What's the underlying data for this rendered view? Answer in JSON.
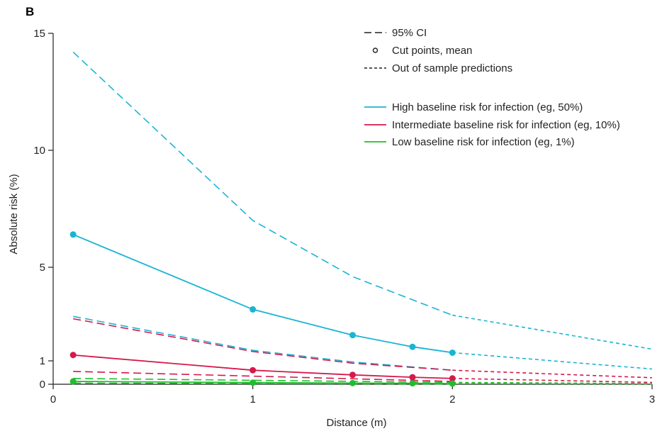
{
  "chart_data": {
    "type": "line",
    "panel_label": "B",
    "xlabel": "Distance (m)",
    "ylabel": "Absolute risk (%)",
    "xlim": [
      0,
      3
    ],
    "ylim": [
      0,
      15
    ],
    "x_ticks": [
      "0",
      "1",
      "2",
      "3"
    ],
    "y_ticks": [
      "0",
      "1",
      "5",
      "10",
      "15"
    ],
    "grid": false,
    "legend_position": "top-right",
    "style_legend": [
      {
        "label": "95% CI",
        "marker": "long-dash"
      },
      {
        "label": "Cut points, mean",
        "marker": "circle"
      },
      {
        "label": "Out of sample predictions",
        "marker": "short-dash"
      }
    ],
    "series": [
      {
        "name": "High baseline risk for infection (eg, 50%)",
        "color": "#1ab4d4",
        "mean": {
          "x": [
            0.1,
            1.0,
            1.5,
            1.8,
            2.0
          ],
          "y": [
            6.4,
            3.2,
            2.1,
            1.6,
            1.35
          ]
        },
        "ci_upper": {
          "x": [
            0.1,
            1.0,
            1.5,
            2.0
          ],
          "y": [
            14.2,
            7.0,
            4.6,
            2.95
          ]
        },
        "ci_lower": {
          "x": [
            0.1,
            1.0,
            1.5,
            2.0
          ],
          "y": [
            2.9,
            1.45,
            0.95,
            0.6
          ]
        },
        "out_of_sample_mean": {
          "x": [
            2.0,
            3.0
          ],
          "y": [
            1.35,
            0.65
          ]
        },
        "out_of_sample_upper": {
          "x": [
            2.0,
            3.0
          ],
          "y": [
            2.95,
            1.5
          ]
        }
      },
      {
        "name": "Intermediate baseline risk for infection (eg, 10%)",
        "color": "#d6184c",
        "mean": {
          "x": [
            0.1,
            1.0,
            1.5,
            1.8,
            2.0
          ],
          "y": [
            1.25,
            0.6,
            0.4,
            0.3,
            0.25
          ]
        },
        "ci_upper": {
          "x": [
            0.1,
            1.0,
            1.5,
            2.0
          ],
          "y": [
            2.8,
            1.4,
            0.9,
            0.6
          ]
        },
        "ci_lower": {
          "x": [
            0.1,
            2.0
          ],
          "y": [
            0.55,
            0.12
          ]
        },
        "out_of_sample_mean": {
          "x": [
            2.0,
            3.0
          ],
          "y": [
            0.25,
            0.08
          ]
        },
        "out_of_sample_upper": {
          "x": [
            2.0,
            3.0
          ],
          "y": [
            0.6,
            0.28
          ]
        }
      },
      {
        "name": "Low baseline risk for infection (eg, 1%)",
        "color": "#1fbe2c",
        "mean": {
          "x": [
            0.1,
            1.0,
            1.5,
            1.8,
            2.0
          ],
          "y": [
            0.12,
            0.07,
            0.05,
            0.04,
            0.03
          ]
        },
        "ci_upper": {
          "x": [
            0.1,
            2.0
          ],
          "y": [
            0.25,
            0.08
          ]
        },
        "ci_lower": {
          "x": [
            0.1,
            2.0
          ],
          "y": [
            0.05,
            0.01
          ]
        },
        "out_of_sample_mean": {
          "x": [
            2.0,
            3.0
          ],
          "y": [
            0.03,
            0.01
          ]
        },
        "out_of_sample_upper": {
          "x": [
            2.0,
            3.0
          ],
          "y": [
            0.08,
            0.03
          ]
        }
      }
    ]
  }
}
